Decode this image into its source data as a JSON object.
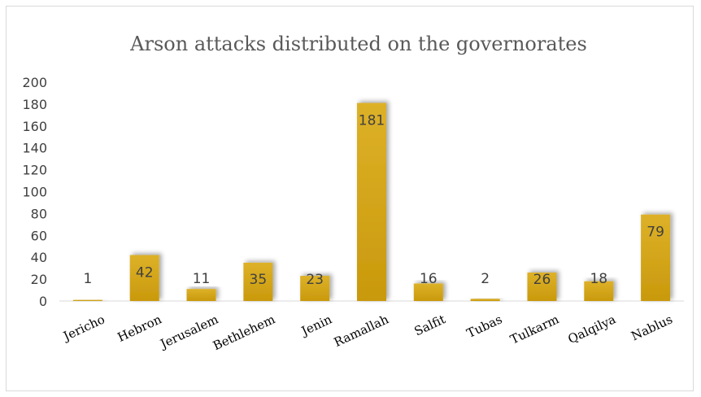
{
  "chart_data": {
    "type": "bar",
    "title": "Arson attacks distributed on the governorates",
    "categories": [
      "Jericho",
      "Hebron",
      "Jerusalem",
      "Bethlehem",
      "Jenin",
      "Ramallah",
      "Salfit",
      "Tubas",
      "Tulkarm",
      "Qalqilya",
      "Nablus"
    ],
    "values": [
      1,
      42,
      11,
      35,
      23,
      181,
      16,
      2,
      26,
      18,
      79
    ],
    "ylim": [
      0,
      200
    ],
    "yticks": [
      0,
      20,
      40,
      60,
      80,
      100,
      120,
      140,
      160,
      180,
      200
    ],
    "xlabel": "",
    "ylabel": "",
    "grid": false,
    "legend": "none",
    "data_labels": true,
    "bar_color": "#c9990c",
    "bar_highlight_color": "#ddb128"
  }
}
